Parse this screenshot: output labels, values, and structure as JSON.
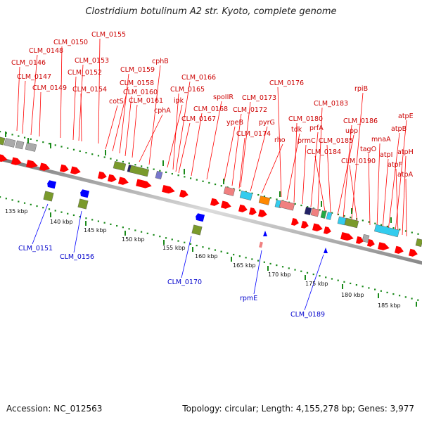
{
  "title": "Clostridium botulinum A2 str. Kyoto, complete genome",
  "footer": {
    "accession": "Accession: NC_012563",
    "summary": "Topology: circular; Length: 4,155,278 bp; Genes: 3,977"
  },
  "colors": {
    "forward_cds": "#ff0000",
    "label_forward": "#cc0000",
    "label_reverse": "#0000cc",
    "reverse_cds": "#0000ff",
    "cog_olive": "#7a9a2c",
    "cog_cyan": "#33ccee",
    "cog_orange": "#ff8800",
    "cog_pink": "#f08080",
    "cog_purple": "#7777cc",
    "cog_navy": "#222266",
    "cog_gray": "#aaaaaa",
    "cog_green": "#22aa44",
    "scale_dots": "#1a8a1a",
    "backbone": "#888888"
  },
  "scale": {
    "ticks": [
      "135 kbp",
      "140 kbp",
      "145 kbp",
      "150 kbp",
      "155 kbp",
      "160 kbp",
      "165 kbp",
      "170 kbp",
      "175 kbp",
      "180 kbp",
      "185 kbp"
    ]
  },
  "forward_labels": [
    "CLM_0146",
    "CLM_0147",
    "CLM_0148",
    "CLM_0149",
    "CLM_0150",
    "CLM_0152",
    "CLM_0153",
    "CLM_0154",
    "CLM_0155",
    "cotS",
    "CLM_0158",
    "CLM_0159",
    "CLM_0160",
    "CLM_0161",
    "cphA",
    "cphB",
    "ipk",
    "CLM_0165",
    "CLM_0166",
    "CLM_0167",
    "CLM_0168",
    "spoIIR",
    "ypeB",
    "CLM_0172",
    "CLM_0173",
    "CLM_0174",
    "pyrG",
    "rho",
    "CLM_0176",
    "tdk",
    "CLM_0180",
    "prmC",
    "prfA",
    "CLM_0183",
    "CLM_0184",
    "CLM_0185",
    "upp",
    "CLM_0186",
    "rpiB",
    "CLM_0190",
    "tagO",
    "mnaA",
    "atpI",
    "atpB",
    "atpE",
    "atpF",
    "atpH",
    "atpA"
  ],
  "reverse_labels": [
    "CLM_0151",
    "CLM_0156",
    "CLM_0170",
    "rpmE",
    "CLM_0189"
  ]
}
